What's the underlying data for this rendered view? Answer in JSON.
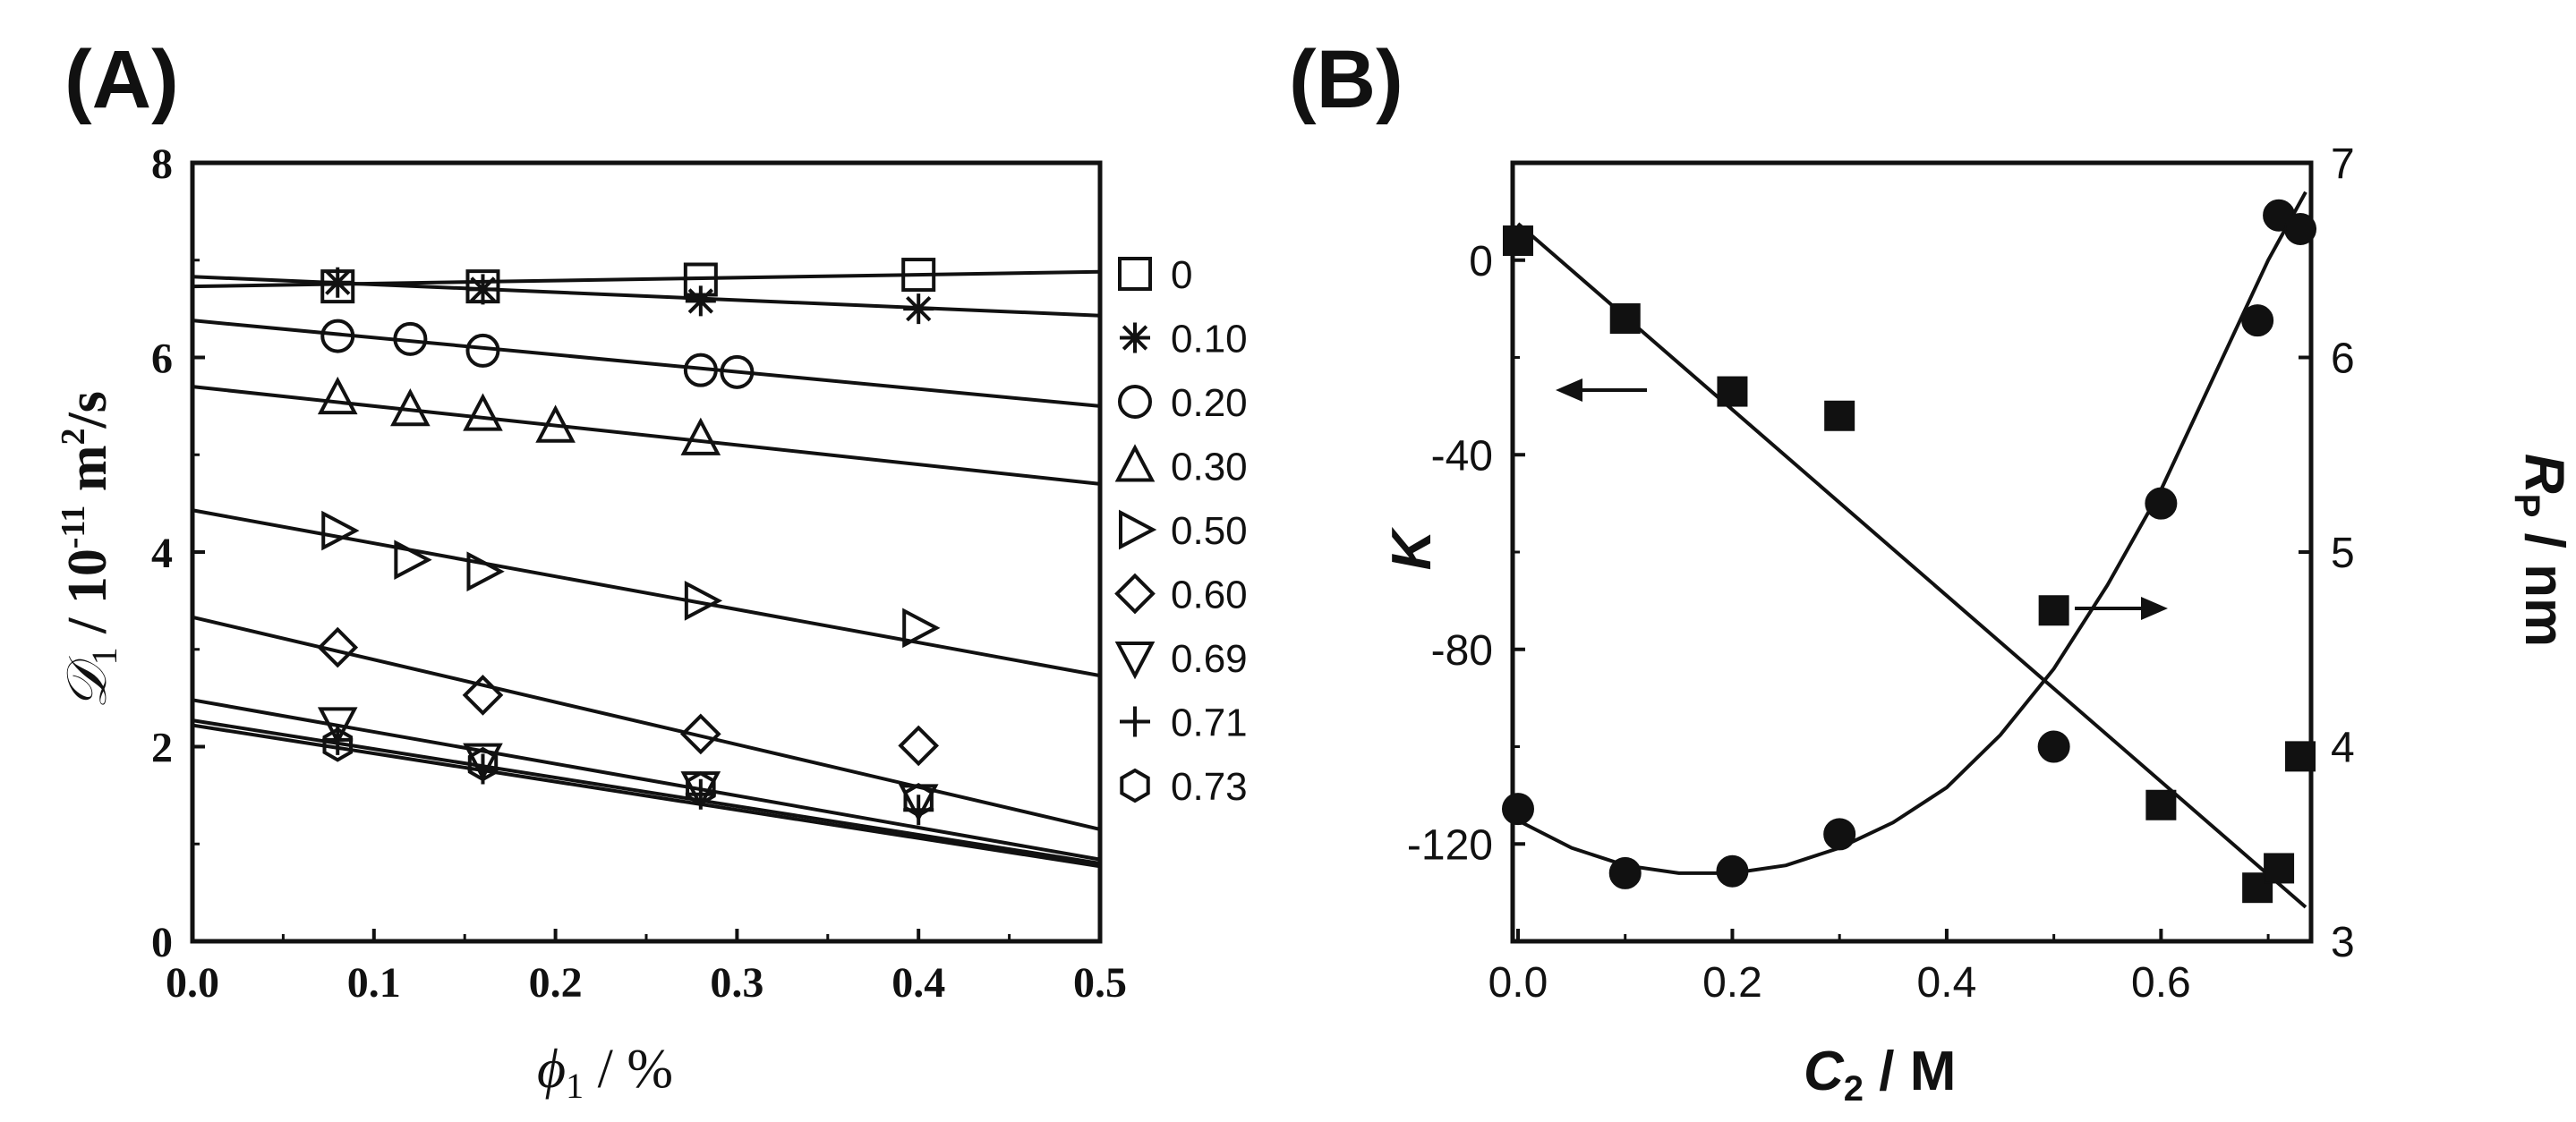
{
  "chart_data": [
    {
      "panel": "(A)",
      "type": "scatter",
      "ylabel_symbol": "𝒟",
      "ylabel_sub": "1",
      "ylabel_unit": " / 10",
      "ylabel_exp": "-11",
      "ylabel_unit2": " m",
      "ylabel_exp2": "2",
      "ylabel_unit3": "/s",
      "xlabel_symbol": "ϕ",
      "xlabel_sub": "1",
      "xlabel_unit": " / %",
      "xlim": [
        0.0,
        0.5
      ],
      "ylim": [
        0,
        8
      ],
      "xticks": [
        0.0,
        0.1,
        0.2,
        0.3,
        0.4,
        0.5
      ],
      "xtick_labels": [
        "0.0",
        "0.1",
        "0.2",
        "0.3",
        "0.4",
        "0.5"
      ],
      "yticks": [
        0,
        2,
        4,
        6,
        8
      ],
      "ytick_labels": [
        "0",
        "2",
        "4",
        "6",
        "8"
      ],
      "legend_position": "right",
      "series": [
        {
          "name": "0",
          "marker": "square",
          "fit": [
            6.73,
            6.88
          ],
          "x": [
            0.08,
            0.16,
            0.28,
            0.4
          ],
          "y": [
            6.73,
            6.73,
            6.8,
            6.85
          ]
        },
        {
          "name": "0.10",
          "marker": "asterisk",
          "fit": [
            6.83,
            6.43
          ],
          "x": [
            0.08,
            0.16,
            0.28,
            0.4
          ],
          "y": [
            6.77,
            6.7,
            6.58,
            6.5
          ]
        },
        {
          "name": "0.20",
          "marker": "circle",
          "fit": [
            6.38,
            5.5
          ],
          "x": [
            0.08,
            0.12,
            0.16,
            0.28,
            0.3
          ],
          "y": [
            6.22,
            6.19,
            6.07,
            5.87,
            5.85
          ]
        },
        {
          "name": "0.30",
          "marker": "triangle-up",
          "fit": [
            5.7,
            4.7
          ],
          "x": [
            0.08,
            0.12,
            0.16,
            0.2,
            0.28
          ],
          "y": [
            5.58,
            5.46,
            5.41,
            5.29,
            5.16
          ]
        },
        {
          "name": "0.50",
          "marker": "triangle-right",
          "fit": [
            4.43,
            2.73
          ],
          "x": [
            0.08,
            0.12,
            0.16,
            0.28,
            0.4
          ],
          "y": [
            4.22,
            3.92,
            3.8,
            3.5,
            3.22
          ]
        },
        {
          "name": "0.60",
          "marker": "diamond",
          "fit": [
            3.33,
            1.15
          ],
          "x": [
            0.08,
            0.16,
            0.28,
            0.4
          ],
          "y": [
            3.02,
            2.53,
            2.13,
            2.01
          ]
        },
        {
          "name": "0.69",
          "marker": "triangle-down",
          "fit": [
            2.48,
            0.84
          ],
          "x": [
            0.08,
            0.16,
            0.28,
            0.4
          ],
          "y": [
            2.24,
            1.87,
            1.58,
            1.45
          ]
        },
        {
          "name": "0.71",
          "marker": "plus",
          "fit": [
            2.27,
            0.8
          ],
          "x": [
            0.08,
            0.16,
            0.28,
            0.4
          ],
          "y": [
            2.07,
            1.77,
            1.51,
            1.35
          ]
        },
        {
          "name": "0.73",
          "marker": "hexagon",
          "fit": [
            2.22,
            0.77
          ],
          "x": [
            0.08,
            0.16,
            0.28,
            0.4
          ],
          "y": [
            2.02,
            1.82,
            1.57,
            1.45
          ]
        }
      ]
    },
    {
      "panel": "(B)",
      "type": "scatter",
      "xlabel_symbol": "C",
      "xlabel_sub": "2",
      "xlabel_unit": " / M",
      "ylabel_left": "K",
      "ylabel_right_symbol": "R",
      "ylabel_right_sub": "P",
      "ylabel_right_unit": " / nm",
      "xlim": [
        -0.005,
        0.74
      ],
      "xticks": [
        0.0,
        0.2,
        0.4,
        0.6
      ],
      "xtick_labels": [
        "0.0",
        "0.2",
        "0.4",
        "0.6"
      ],
      "ylim_left": [
        -140,
        20
      ],
      "yticks_left": [
        0,
        -40,
        -80,
        -120
      ],
      "ytick_labels_left": [
        "0",
        "-40",
        "-80",
        "-120"
      ],
      "ylim_right": [
        3,
        7
      ],
      "yticks_right": [
        3,
        4,
        5,
        6,
        7
      ],
      "ytick_labels_right": [
        "3",
        "4",
        "5",
        "6",
        "7"
      ],
      "series": [
        {
          "name": "K",
          "axis": "left",
          "marker": "filled-square",
          "x": [
            0.0,
            0.1,
            0.2,
            0.3,
            0.5,
            0.6,
            0.69,
            0.71,
            0.73
          ],
          "y": [
            4,
            -12,
            -27,
            -32,
            -72,
            -112,
            -129,
            -125,
            -102
          ],
          "fit_x": [
            0.0,
            0.735
          ],
          "fit_y": [
            7.5,
            -133
          ]
        },
        {
          "name": "R_P",
          "axis": "right",
          "marker": "filled-circle",
          "x": [
            0.0,
            0.1,
            0.2,
            0.3,
            0.5,
            0.6,
            0.69,
            0.71,
            0.73
          ],
          "y": [
            3.68,
            3.35,
            3.36,
            3.55,
            4.0,
            5.25,
            6.19,
            6.73,
            6.66
          ],
          "fit_x": [
            0.0,
            0.05,
            0.1,
            0.15,
            0.2,
            0.25,
            0.3,
            0.35,
            0.4,
            0.45,
            0.5,
            0.55,
            0.6,
            0.65,
            0.7,
            0.735
          ],
          "fit_y": [
            3.62,
            3.48,
            3.39,
            3.35,
            3.35,
            3.39,
            3.48,
            3.61,
            3.79,
            4.06,
            4.4,
            4.83,
            5.32,
            5.91,
            6.5,
            6.85
          ]
        }
      ],
      "annotations": [
        "arrow-left pointing to K axis",
        "arrow-right pointing to R_P axis"
      ]
    }
  ]
}
